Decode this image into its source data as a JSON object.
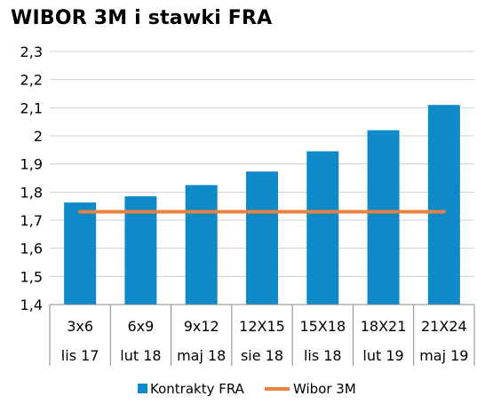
{
  "chart_data": {
    "type": "bar",
    "title": "WIBOR 3M i stawki FRA",
    "categories": [
      [
        "3x6",
        "lis 17"
      ],
      [
        "6x9",
        "lut 18"
      ],
      [
        "9x12",
        "maj 18"
      ],
      [
        "12X15",
        "sie 18"
      ],
      [
        "15X18",
        "lis 18"
      ],
      [
        "18X21",
        "lut 19"
      ],
      [
        "21X24",
        "maj 19"
      ]
    ],
    "series": [
      {
        "name": "Kontrakty FRA",
        "type": "bar",
        "color": "#0F8AC9",
        "values": [
          1.763,
          1.785,
          1.825,
          1.873,
          1.945,
          2.02,
          2.11
        ]
      },
      {
        "name": "Wibor 3M",
        "type": "line",
        "color": "#E8823E",
        "values": [
          1.73,
          1.73,
          1.73,
          1.73,
          1.73,
          1.73,
          1.73
        ]
      }
    ],
    "ylim": [
      1.4,
      2.3
    ],
    "yticks": [
      "1,4",
      "1,5",
      "1,6",
      "1,7",
      "1,8",
      "1,9",
      "2",
      "2,1",
      "2,2",
      "2,3"
    ],
    "grid": true,
    "legend": "bottom"
  }
}
